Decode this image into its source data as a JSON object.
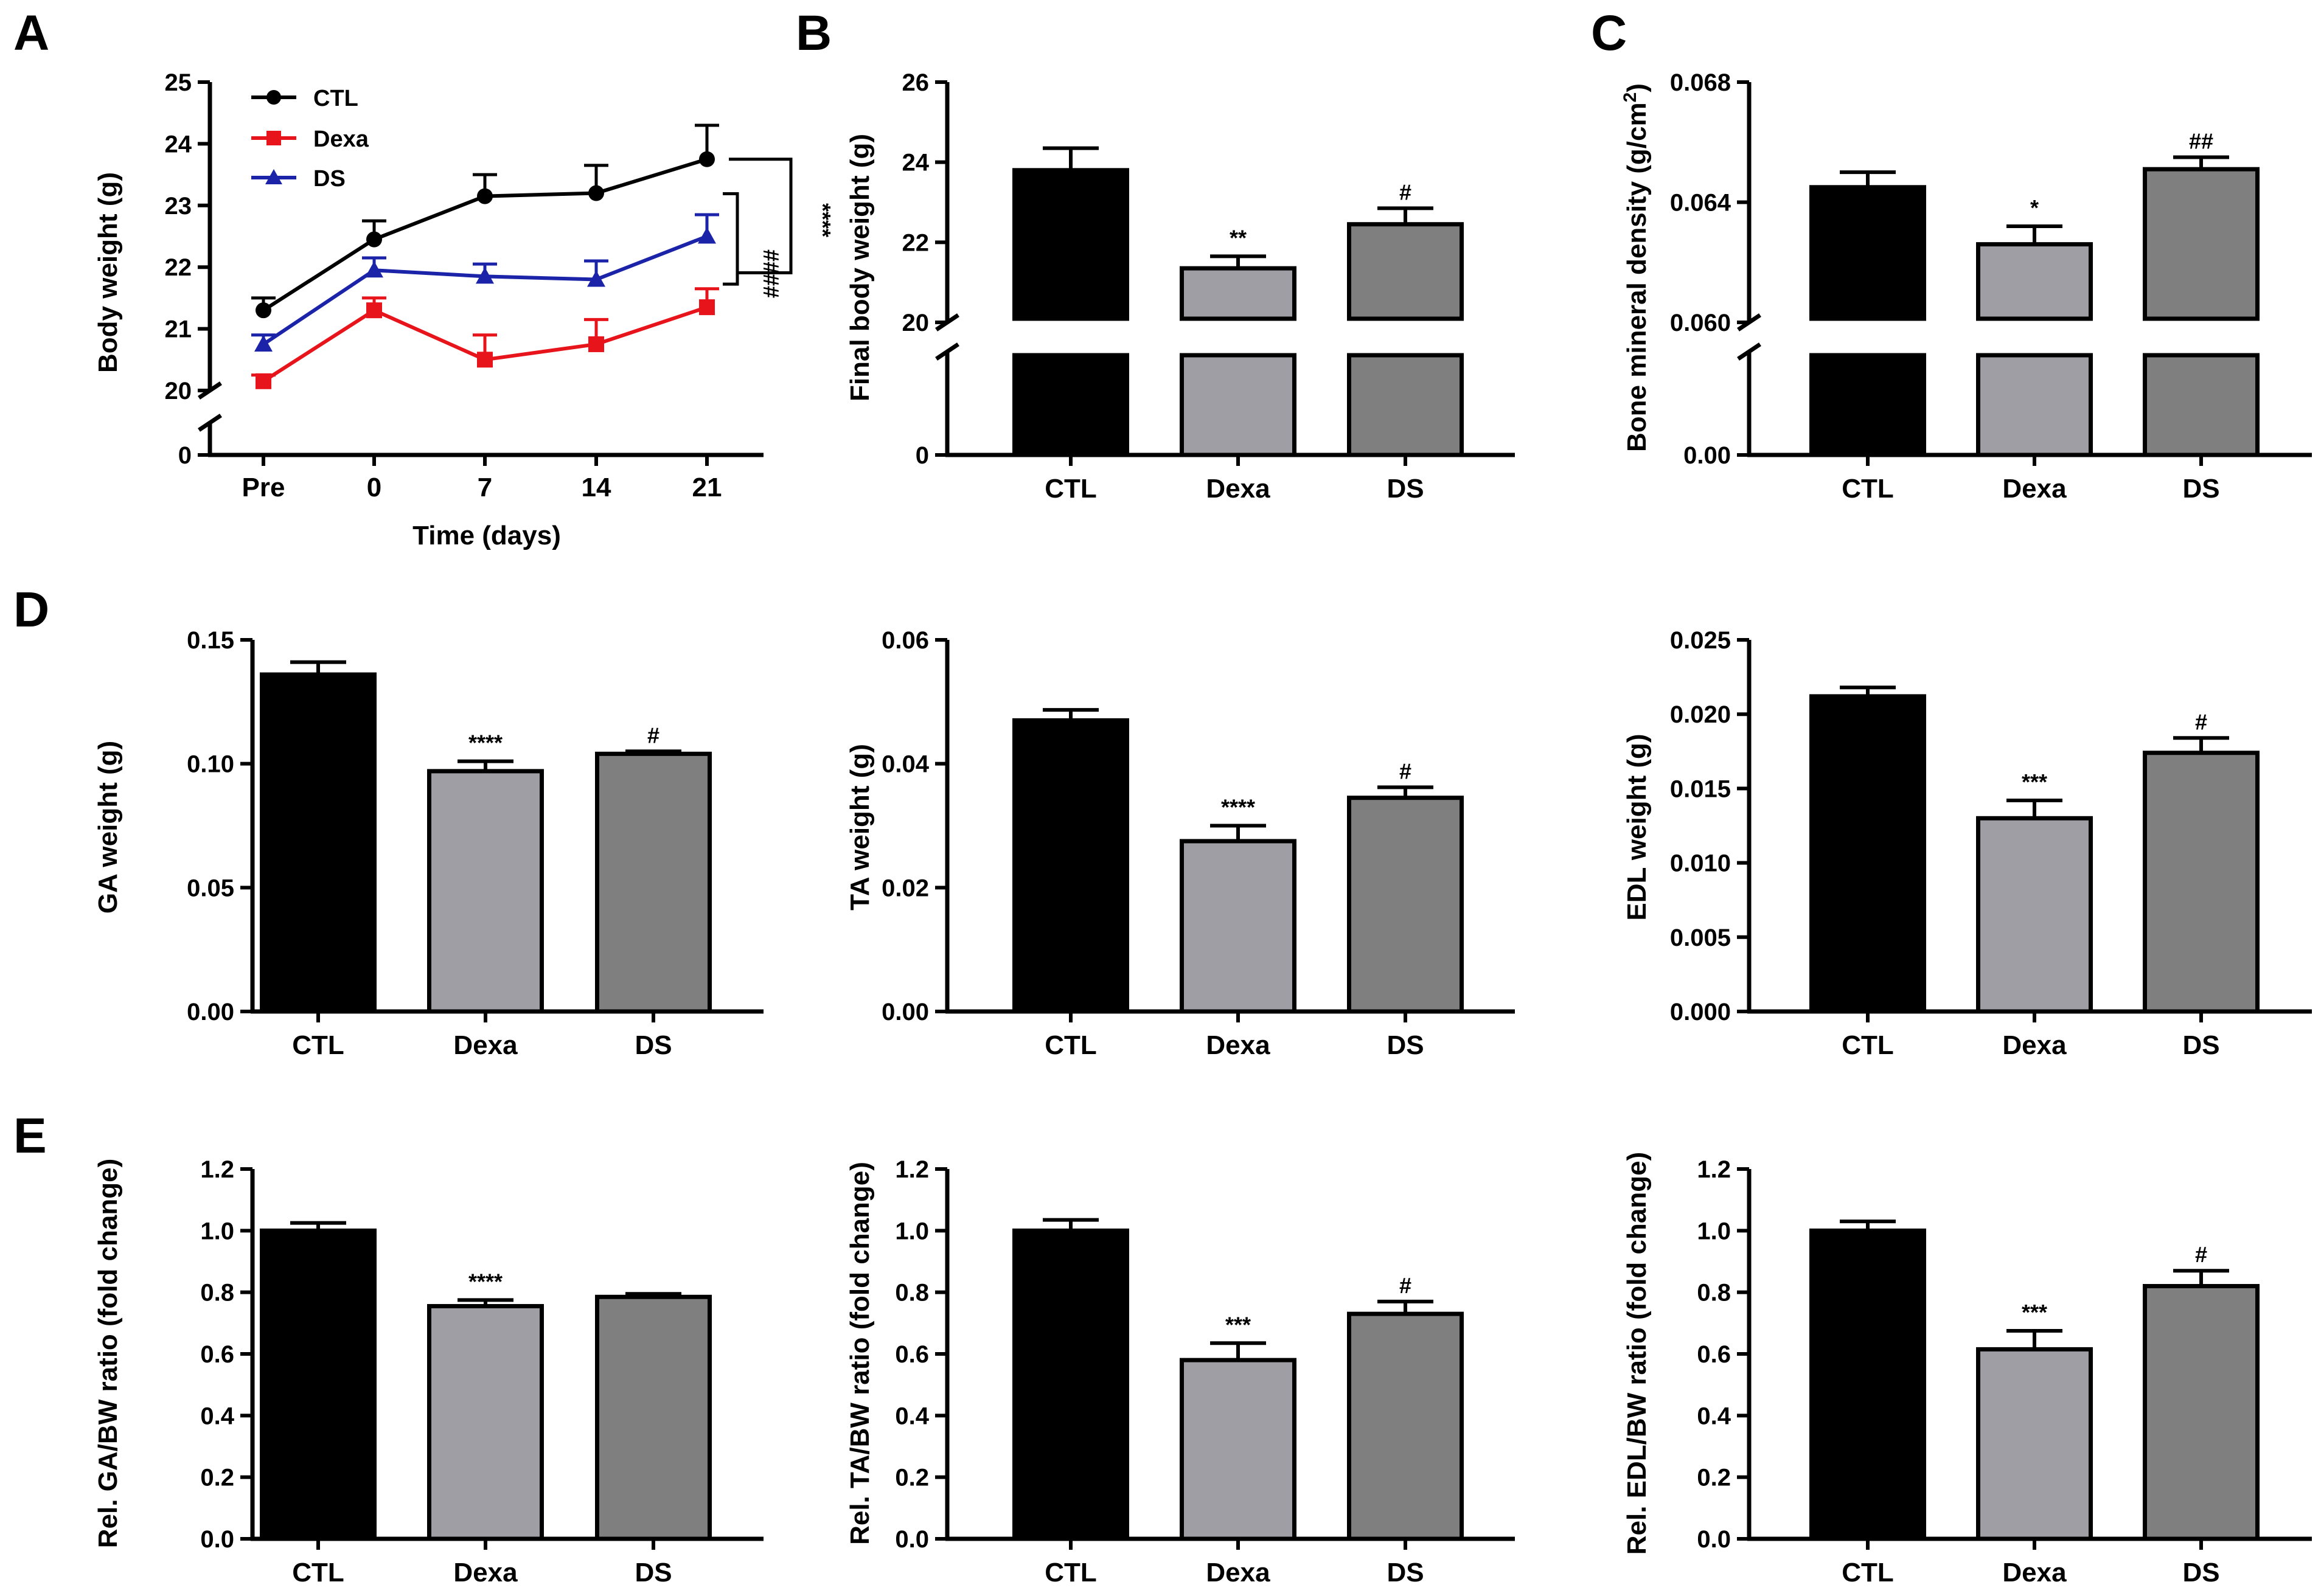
{
  "figure": {
    "panel_labels": [
      "A",
      "B",
      "C",
      "D",
      "E"
    ],
    "colors": {
      "ctl": "#000000",
      "dexa": "#9e9ea4",
      "ds": "#7f7f7f",
      "dexa_line": "#e8141c",
      "ds_line": "#1b24a8"
    }
  },
  "chart_data": [
    {
      "id": "A",
      "type": "line",
      "title": "",
      "xlabel": "Time (days)",
      "ylabel": "Body weight (g)",
      "categories": [
        "Pre",
        "0",
        "7",
        "14",
        "21"
      ],
      "y_broken": true,
      "ylim_upper": [
        20,
        25
      ],
      "yticks": [
        "0",
        "20",
        "21",
        "22",
        "23",
        "24",
        "25"
      ],
      "series": [
        {
          "name": "CTL",
          "marker": "circle",
          "color": "#000000",
          "values": [
            21.3,
            22.45,
            23.15,
            23.2,
            23.75
          ],
          "errors": [
            0.2,
            0.3,
            0.35,
            0.45,
            0.55
          ]
        },
        {
          "name": "Dexa",
          "marker": "square",
          "color": "#e8141c",
          "values": [
            20.15,
            21.3,
            20.5,
            20.75,
            21.35
          ],
          "errors": [
            0.1,
            0.2,
            0.4,
            0.4,
            0.3
          ]
        },
        {
          "name": "DS",
          "marker": "triangle",
          "color": "#1b24a8",
          "values": [
            20.75,
            21.95,
            21.85,
            21.8,
            22.5
          ],
          "errors": [
            0.15,
            0.2,
            0.2,
            0.3,
            0.35
          ]
        }
      ],
      "annotations": [
        "****",
        "####"
      ]
    },
    {
      "id": "B",
      "type": "bar",
      "title": "",
      "xlabel": "",
      "ylabel": "Final body weight (g)",
      "categories": [
        "CTL",
        "Dexa",
        "DS"
      ],
      "values": [
        23.8,
        21.35,
        22.45
      ],
      "errors": [
        0.55,
        0.3,
        0.4
      ],
      "annotations": [
        "",
        "**",
        "#"
      ],
      "y_broken": true,
      "ylim_upper": [
        20,
        26
      ],
      "yticks": [
        "0",
        "20",
        "22",
        "24",
        "26"
      ]
    },
    {
      "id": "C",
      "type": "bar",
      "title": "",
      "xlabel": "",
      "ylabel": "Bone mineral density (g/cm",
      "ylabel_superscript": "2",
      "ylabel_close": ")",
      "categories": [
        "CTL",
        "Dexa",
        "DS"
      ],
      "values": [
        0.0645,
        0.0626,
        0.0651
      ],
      "errors": [
        0.0005,
        0.0006,
        0.0004
      ],
      "annotations": [
        "",
        "*",
        "##"
      ],
      "y_broken": true,
      "ylim_upper": [
        0.06,
        0.068
      ],
      "yticks": [
        "0.00",
        "0.060",
        "0.064",
        "0.068"
      ]
    },
    {
      "id": "D1",
      "type": "bar",
      "title": "",
      "xlabel": "",
      "ylabel": "GA weight (g)",
      "categories": [
        "CTL",
        "Dexa",
        "DS"
      ],
      "values": [
        0.136,
        0.097,
        0.104
      ],
      "errors": [
        0.005,
        0.004,
        0.001
      ],
      "annotations": [
        "",
        "****",
        "#"
      ],
      "ylim": [
        0,
        0.15
      ],
      "yticks": [
        "0.00",
        "0.05",
        "0.10",
        "0.15"
      ]
    },
    {
      "id": "D2",
      "type": "bar",
      "title": "",
      "xlabel": "",
      "ylabel": "TA weight (g)",
      "categories": [
        "CTL",
        "Dexa",
        "DS"
      ],
      "values": [
        0.047,
        0.0275,
        0.0345
      ],
      "errors": [
        0.0017,
        0.0025,
        0.0017
      ],
      "annotations": [
        "",
        "****",
        "#"
      ],
      "ylim": [
        0,
        0.06
      ],
      "yticks": [
        "0.00",
        "0.02",
        "0.04",
        "0.06"
      ]
    },
    {
      "id": "D3",
      "type": "bar",
      "title": "",
      "xlabel": "",
      "ylabel": "EDL weight (g)",
      "categories": [
        "CTL",
        "Dexa",
        "DS"
      ],
      "values": [
        0.0212,
        0.013,
        0.0174
      ],
      "errors": [
        0.0006,
        0.0012,
        0.001
      ],
      "annotations": [
        "",
        "***",
        "#"
      ],
      "ylim": [
        0,
        0.025
      ],
      "yticks": [
        "0.000",
        "0.005",
        "0.010",
        "0.015",
        "0.020",
        "0.025"
      ]
    },
    {
      "id": "E1",
      "type": "bar",
      "title": "",
      "xlabel": "",
      "ylabel": "Rel. GA/BW ratio (fold change)",
      "categories": [
        "CTL",
        "Dexa",
        "DS"
      ],
      "values": [
        1.0,
        0.755,
        0.785
      ],
      "errors": [
        0.025,
        0.02,
        0.01
      ],
      "annotations": [
        "",
        "****",
        ""
      ],
      "ylim": [
        0,
        1.2
      ],
      "yticks": [
        "0.0",
        "0.2",
        "0.4",
        "0.6",
        "0.8",
        "1.0",
        "1.2"
      ]
    },
    {
      "id": "E2",
      "type": "bar",
      "title": "",
      "xlabel": "",
      "ylabel": "Rel. TA/BW ratio (fold change)",
      "categories": [
        "CTL",
        "Dexa",
        "DS"
      ],
      "values": [
        1.0,
        0.58,
        0.73
      ],
      "errors": [
        0.035,
        0.055,
        0.04
      ],
      "annotations": [
        "",
        "***",
        "#"
      ],
      "ylim": [
        0,
        1.2
      ],
      "yticks": [
        "0.0",
        "0.2",
        "0.4",
        "0.6",
        "0.8",
        "1.0",
        "1.2"
      ]
    },
    {
      "id": "E3",
      "type": "bar",
      "title": "",
      "xlabel": "",
      "ylabel": "Rel. EDL/BW ratio (fold change)",
      "categories": [
        "CTL",
        "Dexa",
        "DS"
      ],
      "values": [
        1.0,
        0.615,
        0.82
      ],
      "errors": [
        0.03,
        0.06,
        0.05
      ],
      "annotations": [
        "",
        "***",
        "#"
      ],
      "ylim": [
        0,
        1.2
      ],
      "yticks": [
        "0.0",
        "0.2",
        "0.4",
        "0.6",
        "0.8",
        "1.0",
        "1.2"
      ]
    }
  ]
}
